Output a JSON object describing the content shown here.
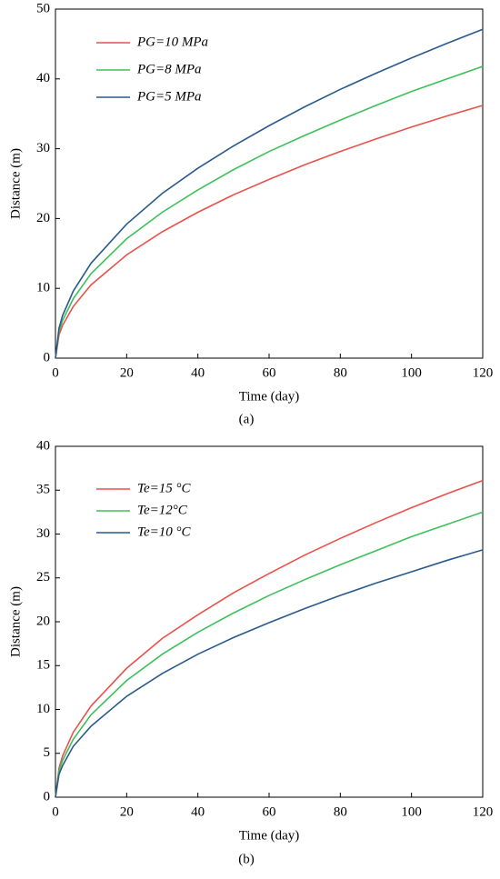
{
  "chart_data": [
    {
      "type": "line",
      "caption": "(a)",
      "xlabel": "Time (day)",
      "ylabel": "Distance (m)",
      "x": [
        0,
        1,
        2,
        5,
        10,
        20,
        30,
        40,
        50,
        60,
        70,
        80,
        90,
        100,
        110,
        120
      ],
      "xlim": [
        0,
        120
      ],
      "xticks": [
        0,
        20,
        40,
        60,
        80,
        100,
        120
      ],
      "ylim": [
        0,
        50
      ],
      "yticks": [
        0,
        10,
        20,
        30,
        40,
        50
      ],
      "legend": "upper left",
      "series": [
        {
          "name": "PG=10 MPa",
          "color": "#e8524a",
          "values": [
            0,
            3.3,
            4.7,
            7.4,
            10.5,
            14.8,
            18.1,
            20.9,
            23.4,
            25.6,
            27.7,
            29.6,
            31.4,
            33.1,
            34.7,
            36.2
          ]
        },
        {
          "name": "PG=8 MPa",
          "color": "#3ec05a",
          "values": [
            0,
            3.8,
            5.4,
            8.5,
            12.1,
            17.1,
            20.9,
            24.1,
            27.0,
            29.6,
            31.9,
            34.1,
            36.2,
            38.2,
            40.0,
            41.8
          ]
        },
        {
          "name": "PG=5 MPa",
          "color": "#2a5a8c",
          "values": [
            0,
            4.3,
            6.1,
            9.6,
            13.6,
            19.2,
            23.6,
            27.2,
            30.4,
            33.3,
            36.0,
            38.5,
            40.8,
            43.0,
            45.1,
            47.1
          ]
        }
      ]
    },
    {
      "type": "line",
      "caption": "(b)",
      "xlabel": "Time (day)",
      "ylabel": "Distance (m)",
      "x": [
        0,
        1,
        2,
        5,
        10,
        20,
        30,
        40,
        50,
        60,
        70,
        80,
        90,
        100,
        110,
        120
      ],
      "xlim": [
        0,
        120
      ],
      "xticks": [
        0,
        20,
        40,
        60,
        80,
        100,
        120
      ],
      "ylim": [
        0,
        40
      ],
      "yticks": [
        0,
        5,
        10,
        15,
        20,
        25,
        30,
        35,
        40
      ],
      "legend": "upper left",
      "series": [
        {
          "name": "Te=15 °C",
          "color": "#e8524a",
          "values": [
            0,
            3.3,
            4.7,
            7.4,
            10.4,
            14.7,
            18.1,
            20.8,
            23.3,
            25.5,
            27.6,
            29.5,
            31.3,
            33.0,
            34.6,
            36.1
          ]
        },
        {
          "name": "Te=12°C",
          "color": "#3ec05a",
          "values": [
            0,
            3.0,
            4.2,
            6.6,
            9.4,
            13.3,
            16.3,
            18.8,
            21.0,
            23.0,
            24.8,
            26.5,
            28.1,
            29.7,
            31.1,
            32.5
          ]
        },
        {
          "name": "Te=10 °C",
          "color": "#2a5a8c",
          "values": [
            0,
            2.6,
            3.6,
            5.8,
            8.1,
            11.5,
            14.1,
            16.3,
            18.2,
            19.9,
            21.5,
            23.0,
            24.4,
            25.7,
            27.0,
            28.2
          ]
        }
      ]
    }
  ]
}
